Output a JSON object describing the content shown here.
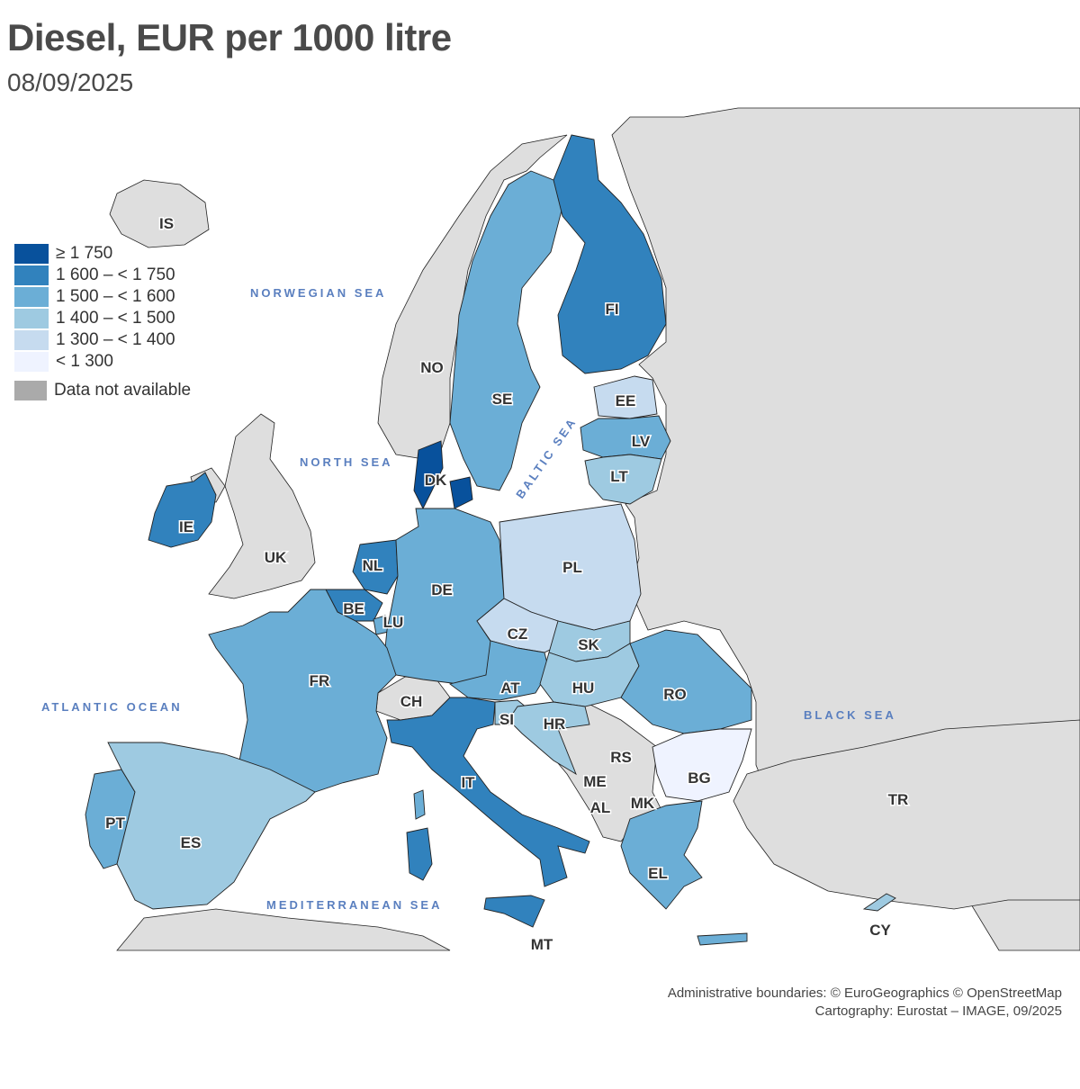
{
  "title": "Diesel, EUR per 1000 litre",
  "subtitle": "08/09/2025",
  "legend": [
    {
      "label": "≥ 1 750",
      "color": "#08519c"
    },
    {
      "label": "1 600 – < 1 750",
      "color": "#3182bd"
    },
    {
      "label": "1 500 – < 1 600",
      "color": "#6baed6"
    },
    {
      "label": "1 400 – < 1 500",
      "color": "#9ecae1"
    },
    {
      "label": "1 300 – < 1 400",
      "color": "#c6dbef"
    },
    {
      "label": "< 1 300",
      "color": "#eff3ff"
    },
    {
      "label": "Data not available",
      "color": "#aaaaaa"
    }
  ],
  "seas": {
    "norwegian": "NORWEGIAN SEA",
    "north": "NORTH SEA",
    "baltic": "BALTIC SEA",
    "atlantic": "ATLANTIC OCEAN",
    "black": "BLACK SEA",
    "mediterranean": "MEDITERRANEAN SEA"
  },
  "countries": {
    "IS": "IS",
    "NO": "NO",
    "SE": "SE",
    "FI": "FI",
    "EE": "EE",
    "LV": "LV",
    "LT": "LT",
    "DK": "DK",
    "IE": "IE",
    "UK": "UK",
    "NL": "NL",
    "BE": "BE",
    "LU": "LU",
    "DE": "DE",
    "PL": "PL",
    "CZ": "CZ",
    "SK": "SK",
    "AT": "AT",
    "HU": "HU",
    "RO": "RO",
    "CH": "CH",
    "FR": "FR",
    "SI": "SI",
    "HR": "HR",
    "RS": "RS",
    "ME": "ME",
    "BG": "BG",
    "AL": "AL",
    "MK": "MK",
    "IT": "IT",
    "PT": "PT",
    "ES": "ES",
    "EL": "EL",
    "TR": "TR",
    "CY": "CY",
    "MT": "MT"
  },
  "credits": {
    "line1": "Administrative boundaries: © EuroGeographics © OpenStreetMap",
    "line2": "Cartography: Eurostat – IMAGE, 09/2025"
  }
}
